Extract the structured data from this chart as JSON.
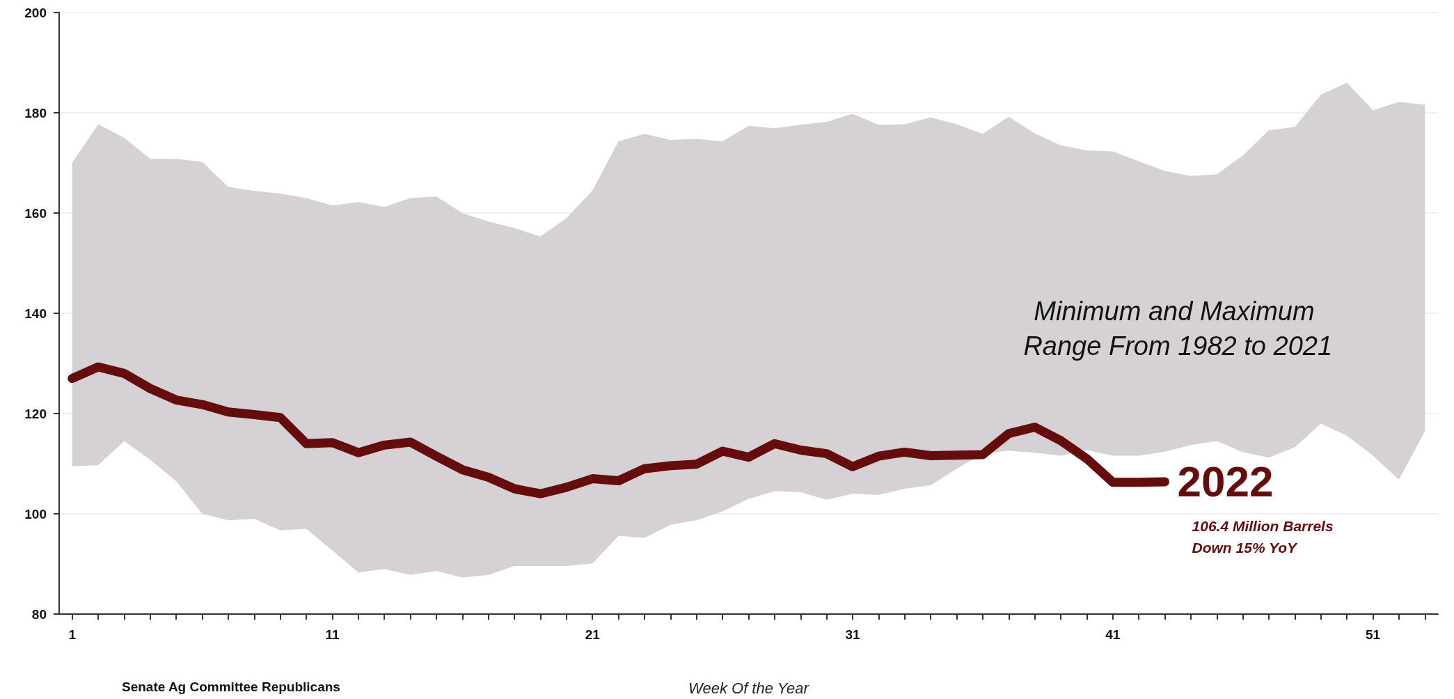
{
  "chart_data": {
    "type": "line",
    "xlabel": "Week Of the Year",
    "x": [
      1,
      2,
      3,
      4,
      5,
      6,
      7,
      8,
      9,
      10,
      11,
      12,
      13,
      14,
      15,
      16,
      17,
      18,
      19,
      20,
      21,
      22,
      23,
      24,
      25,
      26,
      27,
      28,
      29,
      30,
      31,
      32,
      33,
      34,
      35,
      36,
      37,
      38,
      39,
      40,
      41,
      42,
      43,
      44,
      45,
      46,
      47,
      48,
      49,
      50,
      51,
      52,
      53
    ],
    "series": [
      {
        "type": "area",
        "color": "#d5d1d5",
        "values": [
          null,
          null,
          null,
          null,
          null,
          null,
          null,
          null,
          null,
          null,
          null,
          null,
          null,
          null,
          null,
          null,
          null,
          null,
          null,
          null,
          null,
          null,
          null,
          null,
          null,
          null,
          null,
          null,
          null,
          null,
          null,
          null,
          null,
          null,
          null,
          null,
          null,
          null,
          null,
          null,
          null,
          null,
          null,
          null,
          null,
          null,
          null,
          null,
          null,
          null,
          null,
          null,
          null
        ],
        "lower": [
          109.5,
          109.7,
          114.5,
          110.8,
          106.5,
          100,
          98.7,
          99,
          96.7,
          97,
          92.7,
          88.3,
          89,
          87.8,
          88.6,
          87.3,
          87.8,
          89.6,
          89.6,
          89.6,
          90.1,
          95.6,
          95.2,
          97.8,
          98.7,
          100.5,
          103,
          104.5,
          104.3,
          102.8,
          104,
          103.8,
          105,
          105.7,
          109,
          112,
          112.6,
          112.2,
          111.6,
          112.7,
          111.6,
          111.6,
          112.4,
          113.7,
          114.5,
          112.3,
          111.2,
          113.3,
          118,
          115.6,
          111.6,
          106.8,
          116.5
        ],
        "upper": [
          170,
          177.7,
          175,
          170.8,
          170.8,
          170.2,
          165.2,
          164.4,
          163.9,
          163,
          161.5,
          162.2,
          161.2,
          163,
          163.3,
          160,
          158.3,
          157,
          155.3,
          159,
          164.5,
          174.3,
          175.8,
          174.6,
          174.8,
          174.3,
          177.4,
          176.9,
          177.6,
          178.2,
          179.8,
          177.6,
          177.7,
          179.1,
          177.7,
          175.8,
          179.2,
          175.9,
          173.5,
          172.5,
          172.3,
          170.3,
          168.4,
          167.4,
          167.7,
          171.5,
          176.5,
          177.2,
          183.6,
          186,
          180.5,
          182.2,
          181.6
        ]
      },
      {
        "name": "2022",
        "color": "#650c0c",
        "line_style": "solid",
        "values": [
          127,
          129.3,
          128,
          125,
          122.7,
          121.8,
          120.3,
          119.8,
          119.2,
          114,
          114.2,
          112.2,
          113.7,
          114.3,
          111.5,
          108.8,
          107.3,
          105,
          104,
          105.3,
          107,
          106.6,
          109,
          109.6,
          109.9,
          112.5,
          111.3,
          114,
          112.7,
          112,
          109.4,
          111.5,
          112.3,
          111.6,
          111.7,
          111.8,
          116,
          117.3,
          114.6,
          111,
          106.3,
          106.3,
          106.4,
          null,
          null,
          null,
          null,
          null,
          null,
          null,
          null,
          null,
          null
        ]
      }
    ],
    "xlim": [
      0.5,
      53.5
    ],
    "xticks": [
      1,
      {
        "value": 2,
        "label": null
      },
      {
        "value": 3,
        "label": null
      },
      {
        "value": 4,
        "label": null
      },
      {
        "value": 5,
        "label": null
      },
      {
        "value": 6,
        "label": null
      },
      {
        "value": 7,
        "label": null
      },
      {
        "value": 8,
        "label": null
      },
      {
        "value": 9,
        "label": null
      },
      {
        "value": 10,
        "label": null
      },
      11,
      {
        "value": 12,
        "label": null
      },
      {
        "value": 13,
        "label": null
      },
      {
        "value": 14,
        "label": null
      },
      {
        "value": 15,
        "label": null
      },
      {
        "value": 16,
        "label": null
      },
      {
        "value": 17,
        "label": null
      },
      {
        "value": 18,
        "label": null
      },
      {
        "value": 19,
        "label": null
      },
      {
        "value": 20,
        "label": null
      },
      21,
      {
        "value": 22,
        "label": null
      },
      {
        "value": 23,
        "label": null
      },
      {
        "value": 24,
        "label": null
      },
      {
        "value": 25,
        "label": null
      },
      {
        "value": 26,
        "label": null
      },
      {
        "value": 27,
        "label": null
      },
      {
        "value": 28,
        "label": null
      },
      {
        "value": 29,
        "label": null
      },
      {
        "value": 30,
        "label": null
      },
      31,
      {
        "value": 32,
        "label": null
      },
      {
        "value": 33,
        "label": null
      },
      {
        "value": 34,
        "label": null
      },
      {
        "value": 35,
        "label": null
      },
      {
        "value": 36,
        "label": null
      },
      {
        "value": 37,
        "label": null
      },
      {
        "value": 38,
        "label": null
      },
      {
        "value": 39,
        "label": null
      },
      {
        "value": 40,
        "label": null
      },
      41,
      {
        "value": 42,
        "label": null
      },
      {
        "value": 43,
        "label": null
      },
      {
        "value": 44,
        "label": null
      },
      {
        "value": 45,
        "label": null
      },
      {
        "value": 46,
        "label": null
      },
      {
        "value": 47,
        "label": null
      },
      {
        "value": 48,
        "label": null
      },
      {
        "value": 49,
        "label": null
      },
      {
        "value": 50,
        "label": null
      },
      51,
      {
        "value": 52,
        "label": null
      },
      {
        "value": 53,
        "label": null
      }
    ],
    "ylim": [
      80,
      200
    ],
    "yticks": [
      80,
      100,
      120,
      140,
      160,
      180,
      200
    ],
    "grid": "y",
    "legend": false,
    "annotations": [
      "Minimum and Maximum Range From 1982 to 2021",
      "106.4 Million Barrels\nDown 15% YoY",
      "Senate Ag Committee Republicans"
    ]
  }
}
